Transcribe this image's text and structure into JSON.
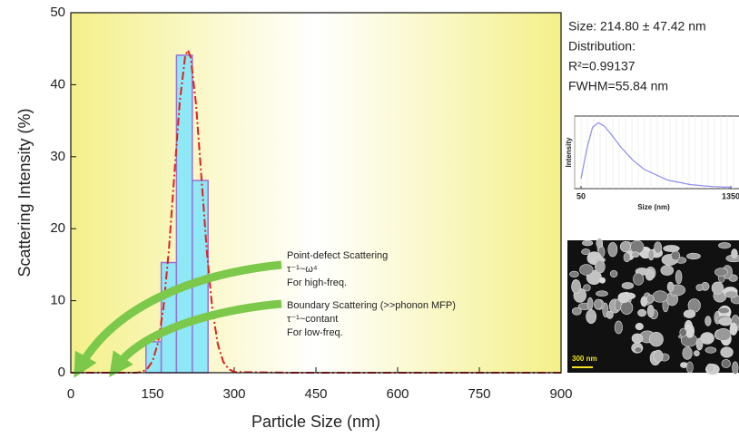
{
  "chart_data": [
    {
      "type": "histogram",
      "x_label": "Particle Size (nm)",
      "y_label": "Scattering Intensity (%)",
      "bins": [
        138,
        166,
        194,
        223,
        252
      ],
      "values": [
        4.3,
        15.3,
        44.1,
        26.7
      ],
      "color": "#8ee8f5",
      "edge_color": "#9b6fd6",
      "fit": {
        "color": "#e02020",
        "x": [
          0,
          120,
          130,
          140,
          150,
          160,
          170,
          180,
          190,
          200,
          210,
          215,
          220,
          230,
          240,
          250,
          260,
          270,
          280,
          290,
          300,
          400,
          900
        ],
        "y": [
          0,
          0.0,
          0.1,
          0.5,
          1.6,
          4.1,
          9.0,
          17.0,
          27.4,
          37.6,
          44.0,
          44.8,
          43.8,
          37.2,
          26.9,
          16.6,
          8.7,
          3.9,
          1.5,
          0.5,
          0.1,
          0,
          0
        ]
      },
      "xlim": [
        0,
        900
      ],
      "ylim": [
        0,
        50
      ],
      "xticks": [
        0,
        150,
        300,
        450,
        600,
        750,
        900
      ],
      "yticks": [
        0,
        10,
        20,
        30,
        40,
        50
      ],
      "annotations": [
        {
          "lines": [
            "Point-defect Scattering",
            "τ⁻¹~ω⁴",
            "For high-freq."
          ]
        },
        {
          "lines": [
            "Boundary Scattering (>>phonon MFP)",
            "τ⁻¹~contant",
            "For low-freq."
          ]
        }
      ]
    },
    {
      "type": "line",
      "x_label": "Size (nm)",
      "y_label": "Intensity",
      "color": "#8c8cf0",
      "x": [
        50,
        100,
        150,
        200,
        250,
        300,
        400,
        500,
        600,
        800,
        1000,
        1200,
        1350
      ],
      "values": [
        0.15,
        0.6,
        0.93,
        1,
        0.95,
        0.85,
        0.62,
        0.43,
        0.29,
        0.13,
        0.06,
        0.03,
        0.02
      ],
      "xlim": [
        50,
        1350
      ],
      "ylim": [
        0,
        1.1
      ],
      "xticks": [
        50,
        1350
      ]
    }
  ],
  "info": [
    "Size: 214.80 ± 47.42 nm",
    "Distribution:",
    "R²=0.99137",
    "FWHM=55.84 nm"
  ],
  "image": {
    "scale_bar": "300 nm"
  }
}
